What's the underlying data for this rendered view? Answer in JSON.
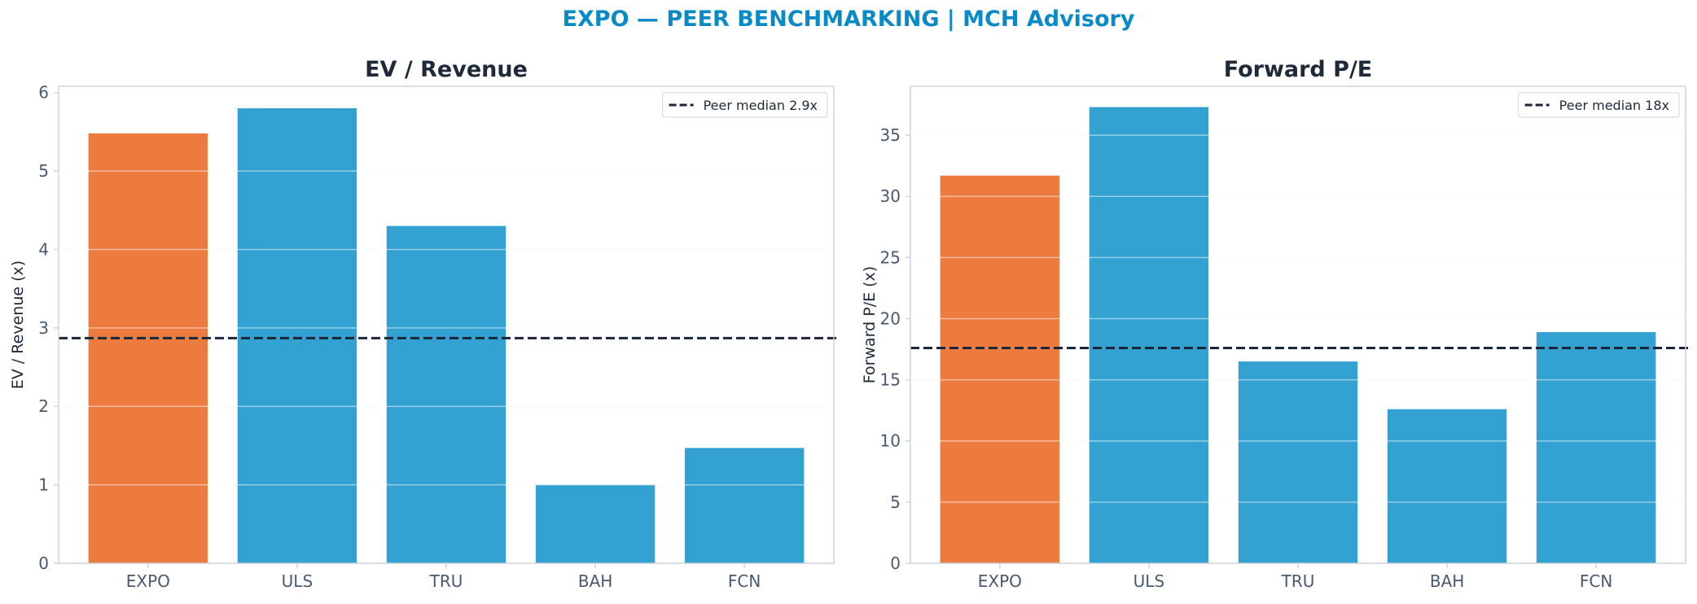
{
  "suptitle": "EXPO — PEER BENCHMARKING | MCH Advisory",
  "colors": {
    "subject": "#ed7b3f",
    "peer": "#33a2d3",
    "median_line": "#1b2638",
    "title": "#0a8ac6",
    "axis_text": "#4a5a6e",
    "spine": "#cfd4da",
    "grid": "#eef0f3"
  },
  "chart_data": [
    {
      "type": "bar",
      "title": "EV / Revenue",
      "ylabel": "EV / Revenue (x)",
      "xlabel": "",
      "categories": [
        "EXPO",
        "ULS",
        "TRU",
        "BAH",
        "FCN"
      ],
      "values": [
        5.48,
        5.8,
        4.3,
        1.0,
        1.47
      ],
      "highlight": "EXPO",
      "ylim": [
        0,
        6.08
      ],
      "yticks": [
        0,
        1,
        2,
        3,
        4,
        5,
        6
      ],
      "ytick_labels": [
        "0",
        "1",
        "2",
        "3",
        "4",
        "5",
        "6"
      ],
      "grid": true,
      "reference_line": {
        "value": 2.87,
        "label": "Peer median 2.9x",
        "style": "dashed"
      },
      "legend_position": "top-right"
    },
    {
      "type": "bar",
      "title": "Forward P/E",
      "ylabel": "Forward P/E (x)",
      "xlabel": "",
      "categories": [
        "EXPO",
        "ULS",
        "TRU",
        "BAH",
        "FCN"
      ],
      "values": [
        31.7,
        37.3,
        16.5,
        12.6,
        18.9
      ],
      "highlight": "EXPO",
      "ylim": [
        0,
        39.0
      ],
      "yticks": [
        0,
        5,
        10,
        15,
        20,
        25,
        30,
        35
      ],
      "ytick_labels": [
        "0",
        "5",
        "10",
        "15",
        "20",
        "25",
        "30",
        "35"
      ],
      "grid": true,
      "reference_line": {
        "value": 17.6,
        "label": "Peer median 18x",
        "style": "dashed"
      },
      "legend_position": "top-right"
    }
  ]
}
